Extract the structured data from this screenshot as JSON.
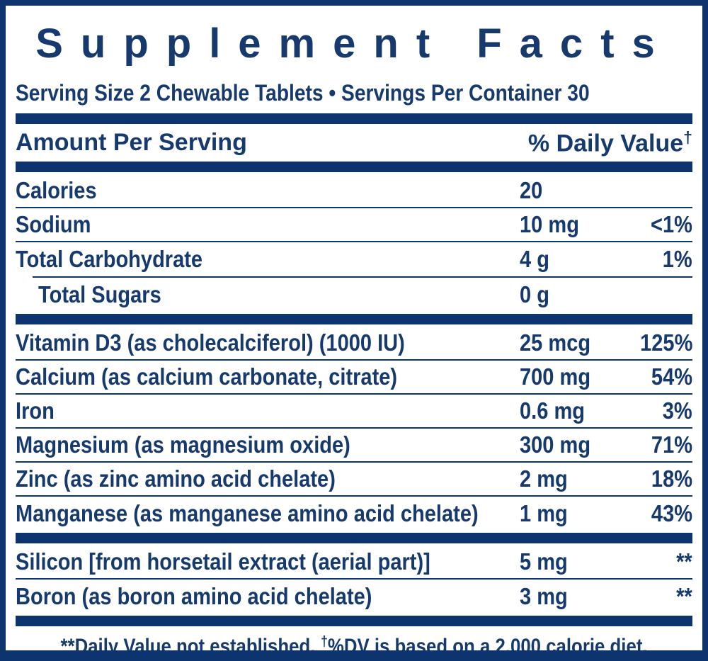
{
  "colors": {
    "navy": "#0e3470",
    "text": "#173a6e",
    "bg": "#ffffff"
  },
  "header": {
    "title": "Supplement Facts",
    "serving_line": "Serving Size 2 Chewable Tablets • Servings Per Container 30"
  },
  "table": {
    "columns": {
      "amount_label": "Amount Per Serving",
      "dv_label": "% Daily Value",
      "dv_symbol": "†"
    },
    "macro_rows": [
      {
        "name": "Calories",
        "amount": "20",
        "dv": ""
      },
      {
        "name": "Sodium",
        "amount": "10 mg",
        "dv": "<1%"
      },
      {
        "name": "Total Carbohydrate",
        "amount": "4 g",
        "dv": "1%"
      },
      {
        "name": "Total Sugars",
        "amount": "0 g",
        "dv": ""
      }
    ],
    "nutrient_rows": [
      {
        "name": "Vitamin D3 (as cholecalciferol) (1000 IU)",
        "amount": "25 mcg",
        "dv": "125%"
      },
      {
        "name": "Calcium (as calcium carbonate, citrate)",
        "amount": "700 mg",
        "dv": "54%"
      },
      {
        "name": "Iron",
        "amount": "0.6 mg",
        "dv": "3%"
      },
      {
        "name": "Magnesium (as magnesium oxide)",
        "amount": "300 mg",
        "dv": "71%"
      },
      {
        "name": "Zinc (as zinc amino acid chelate)",
        "amount": "2 mg",
        "dv": "18%"
      },
      {
        "name": "Manganese (as manganese amino acid chelate)",
        "amount": "1 mg",
        "dv": "43%"
      }
    ],
    "other_rows": [
      {
        "name": "Silicon [from horsetail extract (aerial part)]",
        "amount": "5 mg",
        "dv": "**"
      },
      {
        "name": "Boron (as boron amino acid chelate)",
        "amount": "3 mg",
        "dv": "**"
      }
    ]
  },
  "footnote": {
    "symbol1": "**",
    "text1": "Daily Value not established.",
    "symbol2": "†",
    "text2": "%DV is based on a 2,000 calorie diet."
  }
}
